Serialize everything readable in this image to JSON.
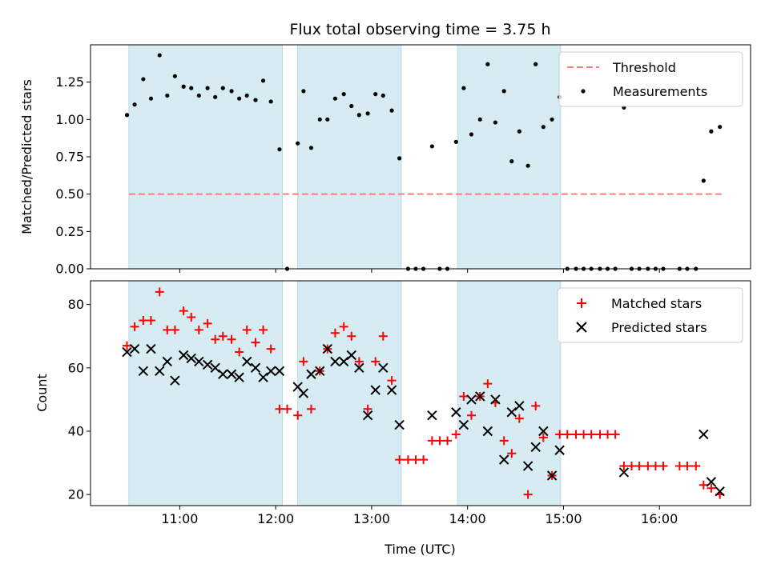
{
  "chart_data": [
    {
      "type": "scatter",
      "title": "Flux total observing time = 3.75 h",
      "xlabel": "",
      "ylabel": "Matched/Predicted stars",
      "xlim": [
        10.07,
        16.95
      ],
      "ylim": [
        0.0,
        1.5
      ],
      "y_ticks": [
        0.0,
        0.25,
        0.5,
        0.75,
        1.0,
        1.25
      ],
      "y_tick_labels": [
        "0.00",
        "0.25",
        "0.50",
        "0.75",
        "1.00",
        "1.25"
      ],
      "shaded_intervals": [
        [
          10.47,
          12.07
        ],
        [
          12.23,
          13.31
        ],
        [
          13.9,
          14.97
        ]
      ],
      "threshold": {
        "name": "Threshold",
        "y": 0.5,
        "x_range": [
          10.47,
          16.65
        ],
        "color": "#ff7a7a"
      },
      "legend": [
        "Threshold",
        "Measurements"
      ],
      "legend_position": "top-right",
      "series": [
        {
          "name": "Measurements",
          "color": "#000000",
          "points": [
            [
              10.45,
              1.03
            ],
            [
              10.53,
              1.1
            ],
            [
              10.62,
              1.27
            ],
            [
              10.7,
              1.14
            ],
            [
              10.79,
              1.43
            ],
            [
              10.87,
              1.16
            ],
            [
              10.95,
              1.29
            ],
            [
              11.04,
              1.22
            ],
            [
              11.12,
              1.21
            ],
            [
              11.2,
              1.16
            ],
            [
              11.29,
              1.21
            ],
            [
              11.37,
              1.15
            ],
            [
              11.45,
              1.21
            ],
            [
              11.54,
              1.19
            ],
            [
              11.62,
              1.14
            ],
            [
              11.7,
              1.16
            ],
            [
              11.79,
              1.13
            ],
            [
              11.87,
              1.26
            ],
            [
              11.95,
              1.12
            ],
            [
              12.04,
              0.8
            ],
            [
              12.12,
              0.0
            ],
            [
              12.23,
              0.84
            ],
            [
              12.29,
              1.19
            ],
            [
              12.37,
              0.81
            ],
            [
              12.46,
              1.0
            ],
            [
              12.54,
              1.0
            ],
            [
              12.62,
              1.14
            ],
            [
              12.71,
              1.17
            ],
            [
              12.79,
              1.09
            ],
            [
              12.87,
              1.03
            ],
            [
              12.96,
              1.04
            ],
            [
              13.04,
              1.17
            ],
            [
              13.12,
              1.16
            ],
            [
              13.21,
              1.06
            ],
            [
              13.29,
              0.74
            ],
            [
              13.38,
              0.0
            ],
            [
              13.46,
              0.0
            ],
            [
              13.54,
              0.0
            ],
            [
              13.63,
              0.82
            ],
            [
              13.71,
              0.0
            ],
            [
              13.79,
              0.0
            ],
            [
              13.88,
              0.85
            ],
            [
              13.96,
              1.21
            ],
            [
              14.04,
              0.9
            ],
            [
              14.13,
              1.0
            ],
            [
              14.21,
              1.37
            ],
            [
              14.29,
              0.98
            ],
            [
              14.38,
              1.19
            ],
            [
              14.46,
              0.72
            ],
            [
              14.54,
              0.92
            ],
            [
              14.63,
              0.69
            ],
            [
              14.71,
              1.37
            ],
            [
              14.79,
              0.95
            ],
            [
              14.88,
              1.0
            ],
            [
              14.96,
              1.15
            ],
            [
              15.04,
              0.0
            ],
            [
              15.13,
              0.0
            ],
            [
              15.21,
              0.0
            ],
            [
              15.29,
              0.0
            ],
            [
              15.38,
              0.0
            ],
            [
              15.46,
              0.0
            ],
            [
              15.54,
              0.0
            ],
            [
              15.63,
              1.08
            ],
            [
              15.71,
              0.0
            ],
            [
              15.79,
              0.0
            ],
            [
              15.88,
              0.0
            ],
            [
              15.96,
              0.0
            ],
            [
              16.04,
              0.0
            ],
            [
              16.21,
              0.0
            ],
            [
              16.29,
              0.0
            ],
            [
              16.38,
              0.0
            ],
            [
              16.46,
              0.59
            ],
            [
              16.54,
              0.92
            ],
            [
              16.63,
              0.95
            ]
          ]
        }
      ]
    },
    {
      "type": "scatter",
      "title": "",
      "xlabel": "Time (UTC)",
      "ylabel": "Count",
      "xlim": [
        10.07,
        16.95
      ],
      "ylim": [
        16.5,
        87.5
      ],
      "x_ticks": [
        11,
        12,
        13,
        14,
        15,
        16
      ],
      "x_tick_labels": [
        "11:00",
        "12:00",
        "13:00",
        "14:00",
        "15:00",
        "16:00"
      ],
      "y_ticks": [
        20,
        40,
        60,
        80
      ],
      "y_tick_labels": [
        "20",
        "40",
        "60",
        "80"
      ],
      "shaded_intervals": [
        [
          10.47,
          12.07
        ],
        [
          12.23,
          13.31
        ],
        [
          13.9,
          14.97
        ]
      ],
      "legend": [
        "Matched stars",
        "Predicted stars"
      ],
      "legend_position": "top-right",
      "series": [
        {
          "name": "Matched stars",
          "marker": "plus",
          "color": "#ff0000",
          "points": [
            [
              10.45,
              67
            ],
            [
              10.53,
              73
            ],
            [
              10.62,
              75
            ],
            [
              10.7,
              75
            ],
            [
              10.79,
              84
            ],
            [
              10.87,
              72
            ],
            [
              10.95,
              72
            ],
            [
              11.04,
              78
            ],
            [
              11.12,
              76
            ],
            [
              11.2,
              72
            ],
            [
              11.29,
              74
            ],
            [
              11.37,
              69
            ],
            [
              11.45,
              70
            ],
            [
              11.54,
              69
            ],
            [
              11.62,
              65
            ],
            [
              11.7,
              72
            ],
            [
              11.79,
              68
            ],
            [
              11.87,
              72
            ],
            [
              11.95,
              66
            ],
            [
              12.04,
              47
            ],
            [
              12.12,
              47
            ],
            [
              12.23,
              45
            ],
            [
              12.29,
              62
            ],
            [
              12.37,
              47
            ],
            [
              12.46,
              59
            ],
            [
              12.54,
              66
            ],
            [
              12.62,
              71
            ],
            [
              12.71,
              73
            ],
            [
              12.79,
              70
            ],
            [
              12.87,
              62
            ],
            [
              12.96,
              47
            ],
            [
              13.04,
              62
            ],
            [
              13.12,
              70
            ],
            [
              13.21,
              56
            ],
            [
              13.29,
              31
            ],
            [
              13.38,
              31
            ],
            [
              13.46,
              31
            ],
            [
              13.54,
              31
            ],
            [
              13.63,
              37
            ],
            [
              13.71,
              37
            ],
            [
              13.79,
              37
            ],
            [
              13.88,
              39
            ],
            [
              13.96,
              51
            ],
            [
              14.04,
              45
            ],
            [
              14.13,
              51
            ],
            [
              14.21,
              55
            ],
            [
              14.29,
              49
            ],
            [
              14.38,
              37
            ],
            [
              14.46,
              33
            ],
            [
              14.54,
              44
            ],
            [
              14.63,
              20
            ],
            [
              14.71,
              48
            ],
            [
              14.79,
              38
            ],
            [
              14.88,
              26
            ],
            [
              14.96,
              39
            ],
            [
              15.04,
              39
            ],
            [
              15.13,
              39
            ],
            [
              15.21,
              39
            ],
            [
              15.29,
              39
            ],
            [
              15.38,
              39
            ],
            [
              15.46,
              39
            ],
            [
              15.54,
              39
            ],
            [
              15.63,
              29
            ],
            [
              15.71,
              29
            ],
            [
              15.79,
              29
            ],
            [
              15.88,
              29
            ],
            [
              15.96,
              29
            ],
            [
              16.04,
              29
            ],
            [
              16.21,
              29
            ],
            [
              16.29,
              29
            ],
            [
              16.38,
              29
            ],
            [
              16.46,
              23
            ],
            [
              16.54,
              22
            ],
            [
              16.63,
              20
            ]
          ]
        },
        {
          "name": "Predicted stars",
          "marker": "x",
          "color": "#000000",
          "points": [
            [
              10.45,
              65
            ],
            [
              10.53,
              66
            ],
            [
              10.62,
              59
            ],
            [
              10.7,
              66
            ],
            [
              10.79,
              59
            ],
            [
              10.87,
              62
            ],
            [
              10.95,
              56
            ],
            [
              11.04,
              64
            ],
            [
              11.12,
              63
            ],
            [
              11.2,
              62
            ],
            [
              11.29,
              61
            ],
            [
              11.37,
              60
            ],
            [
              11.45,
              58
            ],
            [
              11.54,
              58
            ],
            [
              11.62,
              57
            ],
            [
              11.7,
              62
            ],
            [
              11.79,
              60
            ],
            [
              11.87,
              57
            ],
            [
              11.95,
              59
            ],
            [
              12.04,
              59
            ],
            [
              12.23,
              54
            ],
            [
              12.29,
              52
            ],
            [
              12.37,
              58
            ],
            [
              12.46,
              59
            ],
            [
              12.54,
              66
            ],
            [
              12.62,
              62
            ],
            [
              12.71,
              62
            ],
            [
              12.79,
              64
            ],
            [
              12.87,
              60
            ],
            [
              12.96,
              45
            ],
            [
              13.04,
              53
            ],
            [
              13.12,
              60
            ],
            [
              13.21,
              53
            ],
            [
              13.29,
              42
            ],
            [
              13.63,
              45
            ],
            [
              13.88,
              46
            ],
            [
              13.96,
              42
            ],
            [
              14.04,
              50
            ],
            [
              14.13,
              51
            ],
            [
              14.21,
              40
            ],
            [
              14.29,
              50
            ],
            [
              14.38,
              31
            ],
            [
              14.46,
              46
            ],
            [
              14.54,
              48
            ],
            [
              14.63,
              29
            ],
            [
              14.71,
              35
            ],
            [
              14.79,
              40
            ],
            [
              14.88,
              26
            ],
            [
              14.96,
              34
            ],
            [
              15.63,
              27
            ],
            [
              16.46,
              39
            ],
            [
              16.54,
              24
            ],
            [
              16.63,
              21
            ]
          ]
        }
      ]
    }
  ]
}
